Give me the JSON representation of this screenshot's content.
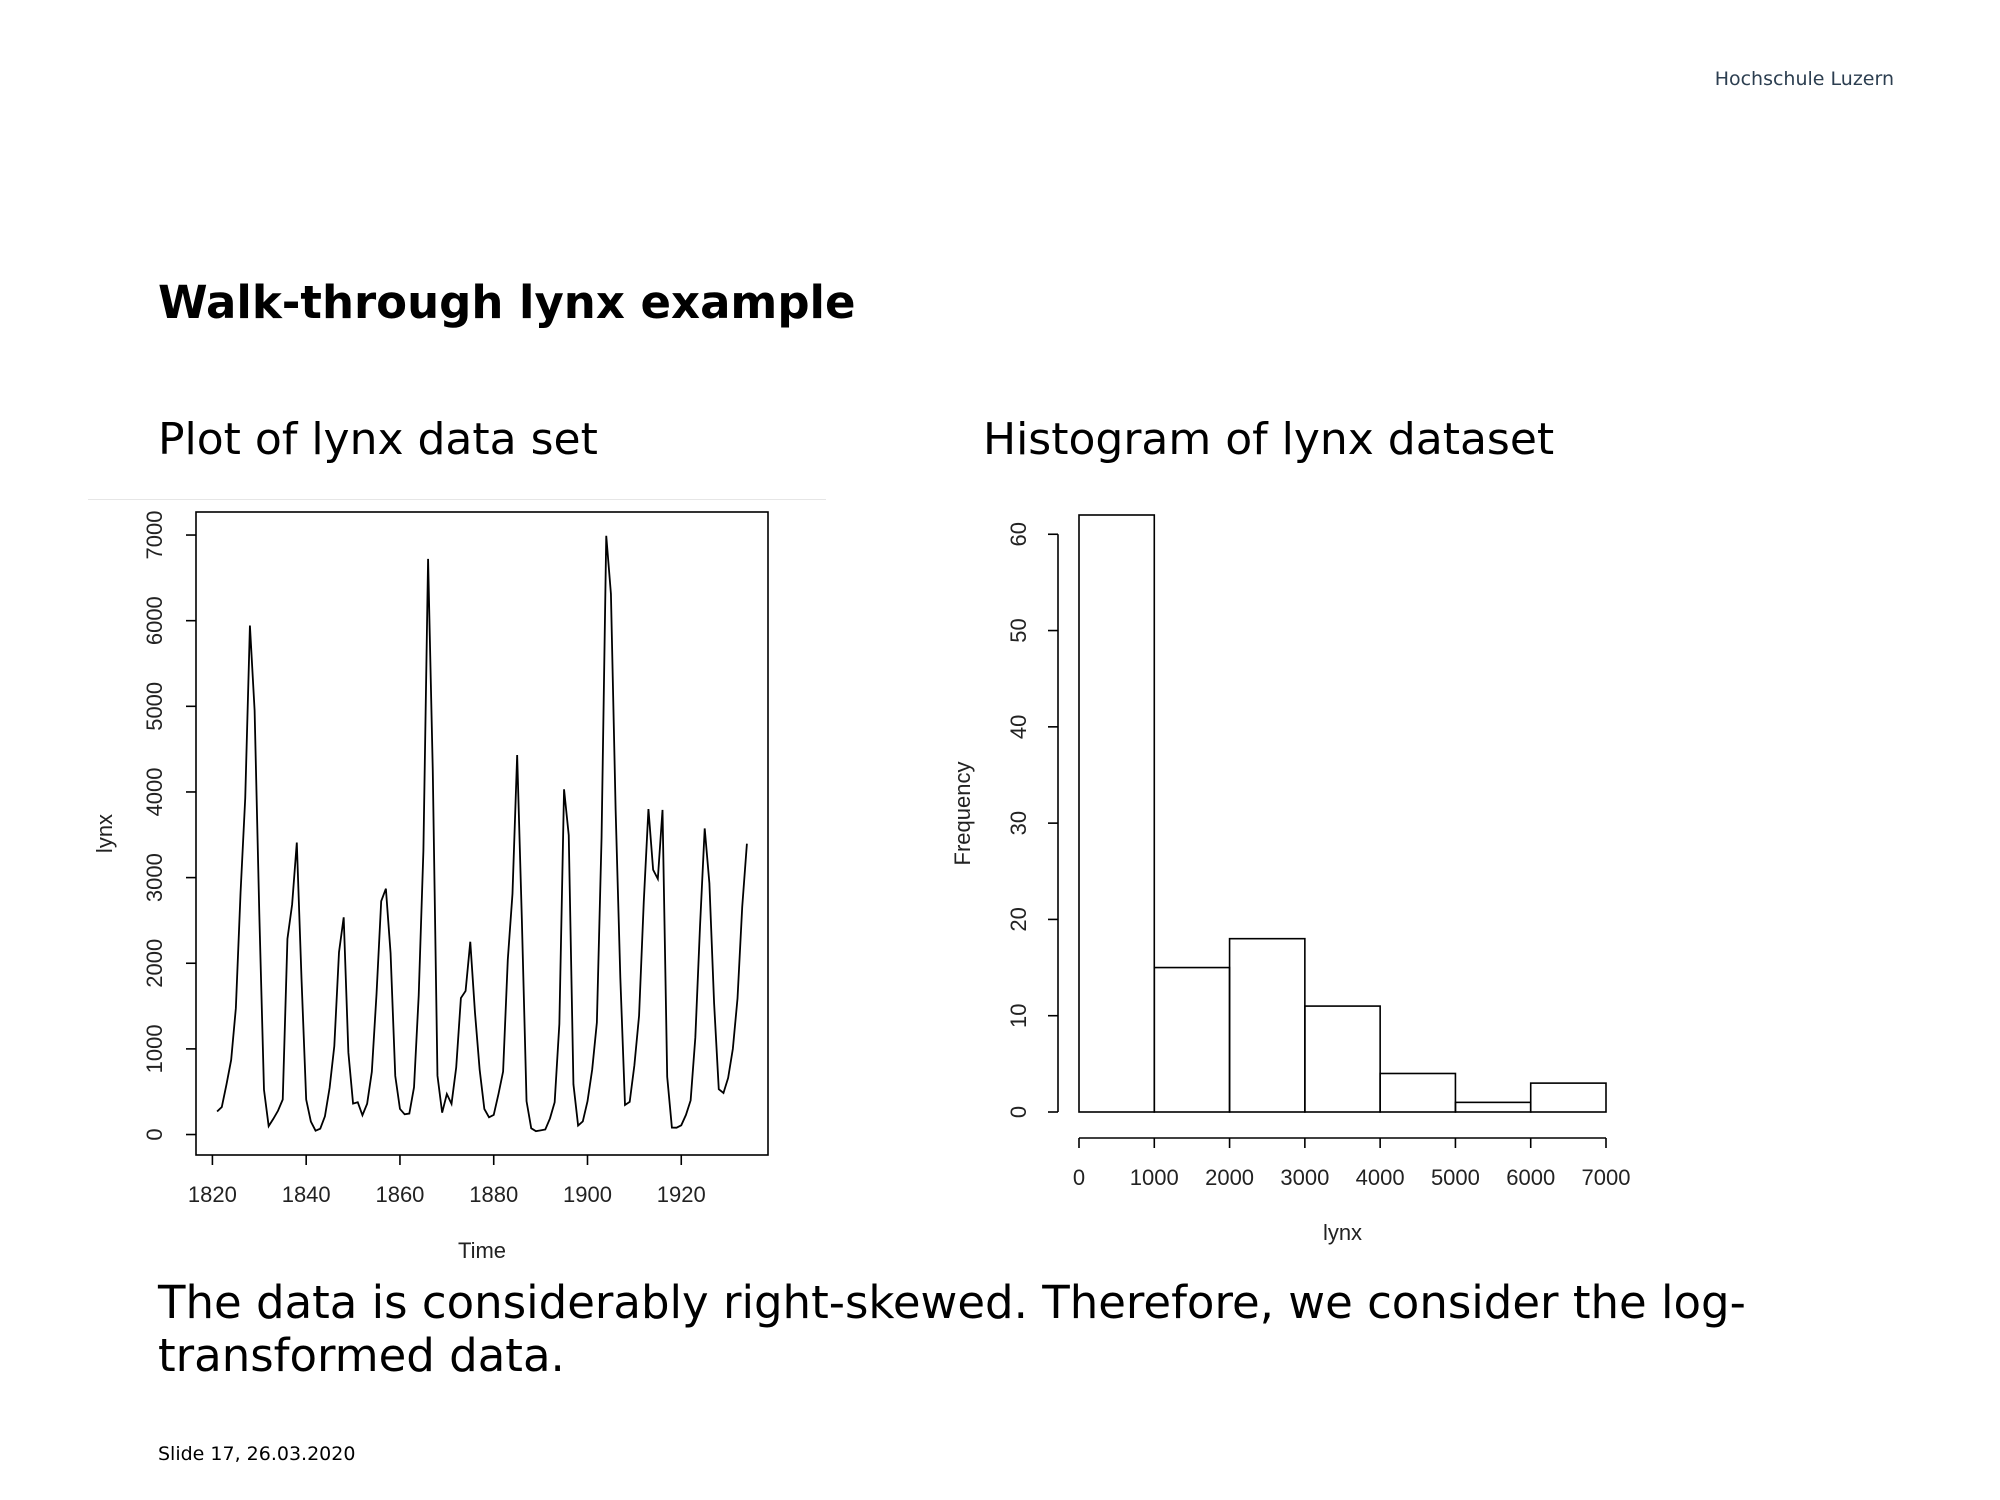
{
  "header": {
    "brand": "Hochschule Luzern"
  },
  "title": "Walk-through lynx example",
  "chart_data": [
    {
      "type": "line",
      "subtitle": "Plot of lynx data set",
      "xlabel": "Time",
      "ylabel": "lynx",
      "color": "#000000",
      "x": [
        1821,
        1822,
        1823,
        1824,
        1825,
        1826,
        1827,
        1828,
        1829,
        1830,
        1831,
        1832,
        1833,
        1834,
        1835,
        1836,
        1837,
        1838,
        1839,
        1840,
        1841,
        1842,
        1843,
        1844,
        1845,
        1846,
        1847,
        1848,
        1849,
        1850,
        1851,
        1852,
        1853,
        1854,
        1855,
        1856,
        1857,
        1858,
        1859,
        1860,
        1861,
        1862,
        1863,
        1864,
        1865,
        1866,
        1867,
        1868,
        1869,
        1870,
        1871,
        1872,
        1873,
        1874,
        1875,
        1876,
        1877,
        1878,
        1879,
        1880,
        1881,
        1882,
        1883,
        1884,
        1885,
        1886,
        1887,
        1888,
        1889,
        1890,
        1891,
        1892,
        1893,
        1894,
        1895,
        1896,
        1897,
        1898,
        1899,
        1900,
        1901,
        1902,
        1903,
        1904,
        1905,
        1906,
        1907,
        1908,
        1909,
        1910,
        1911,
        1912,
        1913,
        1914,
        1915,
        1916,
        1917,
        1918,
        1919,
        1920,
        1921,
        1922,
        1923,
        1924,
        1925,
        1926,
        1927,
        1928,
        1929,
        1930,
        1931,
        1932,
        1933,
        1934
      ],
      "values": [
        269,
        321,
        585,
        871,
        1475,
        2821,
        3928,
        5943,
        4950,
        2577,
        523,
        98,
        184,
        279,
        409,
        2285,
        2685,
        3409,
        1824,
        409,
        151,
        45,
        68,
        213,
        546,
        1033,
        2129,
        2536,
        957,
        361,
        377,
        225,
        360,
        731,
        1638,
        2725,
        2871,
        2119,
        684,
        299,
        236,
        245,
        552,
        1623,
        3311,
        6721,
        4254,
        687,
        255,
        473,
        358,
        784,
        1594,
        1676,
        2251,
        1426,
        756,
        299,
        201,
        229,
        469,
        736,
        2042,
        2811,
        4431,
        2511,
        389,
        73,
        39,
        49,
        59,
        188,
        377,
        1292,
        4031,
        3495,
        587,
        105,
        153,
        387,
        758,
        1307,
        3465,
        6991,
        6313,
        3794,
        1836,
        345,
        382,
        808,
        1388,
        2713,
        3800,
        3091,
        2985,
        3790,
        674,
        81,
        80,
        108,
        229,
        399,
        1132,
        2432,
        3574,
        2935,
        1537,
        529,
        485,
        662,
        1000,
        1590,
        2657,
        3396
      ],
      "xlim": [
        1816.5,
        1938.5
      ],
      "ylim": [
        -239,
        7269
      ],
      "xticks": [
        1820,
        1840,
        1860,
        1880,
        1900,
        1920
      ],
      "yticks": [
        0,
        1000,
        2000,
        3000,
        4000,
        5000,
        6000,
        7000
      ]
    },
    {
      "type": "histogram",
      "subtitle": "Histogram of lynx dataset",
      "xlabel": "lynx",
      "ylabel": "Frequency",
      "bins": [
        0,
        1000,
        2000,
        3000,
        4000,
        5000,
        6000,
        7000
      ],
      "values": [
        62,
        15,
        18,
        11,
        4,
        1,
        3
      ],
      "xlim": [
        0,
        7000
      ],
      "ylim": [
        0,
        62
      ],
      "xticks": [
        0,
        1000,
        2000,
        3000,
        4000,
        5000,
        6000,
        7000
      ],
      "yticks": [
        0,
        10,
        20,
        30,
        40,
        50,
        60
      ]
    }
  ],
  "body_text": "The data is considerably right-skewed. Therefore, we consider the log-transformed data.",
  "footer": "Slide 17, 26.03.2020"
}
